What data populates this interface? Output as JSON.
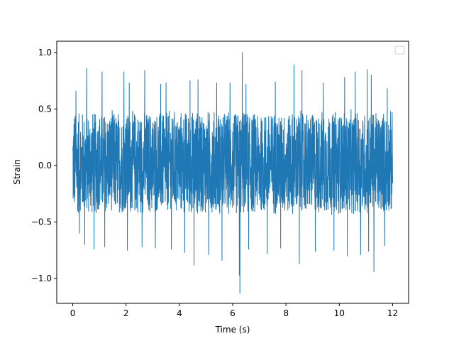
{
  "chart_data": {
    "type": "line",
    "title": "",
    "xlabel": "Time (s)",
    "ylabel": "Strain",
    "xlim": [
      -0.6,
      12.6
    ],
    "ylim": [
      -1.22,
      1.1
    ],
    "x_ticks": [
      0,
      2,
      4,
      6,
      8,
      10,
      12
    ],
    "x_tick_labels": [
      "0",
      "2",
      "4",
      "6",
      "8",
      "10",
      "12"
    ],
    "y_ticks": [
      -1.0,
      -0.5,
      0.0,
      0.5,
      1.0
    ],
    "y_tick_labels": [
      "−1.0",
      "−0.5",
      "0.0",
      "0.5",
      "1.0"
    ],
    "grid": false,
    "legend": {
      "placement": "top-right",
      "entries": []
    },
    "series": [
      {
        "color": "#1f77b4",
        "x_start": 0,
        "x_end": 12,
        "typical_range": [
          -0.45,
          0.5
        ],
        "spikes": [
          [
            0.12,
            0.66
          ],
          [
            0.52,
            0.86
          ],
          [
            1.1,
            0.83
          ],
          [
            1.92,
            0.83
          ],
          [
            2.12,
            0.73
          ],
          [
            2.7,
            0.84
          ],
          [
            3.3,
            0.72
          ],
          [
            3.5,
            0.73
          ],
          [
            4.4,
            0.75
          ],
          [
            4.7,
            0.76
          ],
          [
            5.4,
            0.73
          ],
          [
            5.9,
            0.73
          ],
          [
            6.36,
            1.0
          ],
          [
            6.5,
            0.72
          ],
          [
            7.6,
            0.74
          ],
          [
            8.3,
            0.89
          ],
          [
            8.6,
            0.84
          ],
          [
            9.4,
            0.73
          ],
          [
            10.2,
            0.78
          ],
          [
            10.6,
            0.83
          ],
          [
            11.05,
            0.85
          ],
          [
            11.2,
            0.8
          ],
          [
            11.8,
            0.68
          ],
          [
            0.25,
            -0.6
          ],
          [
            0.45,
            -0.7
          ],
          [
            0.8,
            -0.74
          ],
          [
            1.2,
            -0.72
          ],
          [
            2.05,
            -0.75
          ],
          [
            2.6,
            -0.72
          ],
          [
            3.1,
            -0.73
          ],
          [
            3.7,
            -0.74
          ],
          [
            4.2,
            -0.77
          ],
          [
            4.55,
            -0.88
          ],
          [
            5.1,
            -0.79
          ],
          [
            5.6,
            -0.84
          ],
          [
            6.25,
            -0.97
          ],
          [
            6.27,
            -1.13
          ],
          [
            6.6,
            -0.74
          ],
          [
            7.3,
            -0.78
          ],
          [
            7.8,
            -0.73
          ],
          [
            8.5,
            -0.87
          ],
          [
            9.1,
            -0.76
          ],
          [
            9.8,
            -0.75
          ],
          [
            10.3,
            -0.8
          ],
          [
            10.8,
            -0.79
          ],
          [
            11.1,
            -0.76
          ],
          [
            11.3,
            -0.94
          ],
          [
            11.7,
            -0.71
          ]
        ]
      }
    ]
  }
}
